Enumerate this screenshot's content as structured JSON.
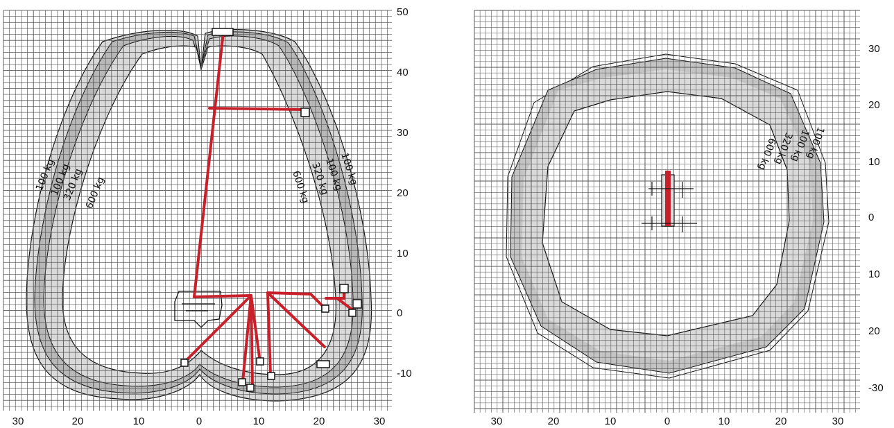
{
  "left_diagram": {
    "axis_x_ticks": [
      "30",
      "20",
      "10",
      "0",
      "10",
      "20",
      "30"
    ],
    "axis_y_ticks": [
      "50",
      "40",
      "30",
      "20",
      "10",
      "0",
      "-10"
    ],
    "envelope_labels_left": [
      "100 kg",
      "100 kg",
      "320 kg",
      "600 kg"
    ],
    "envelope_labels_right": [
      "600 kg",
      "320 kg",
      "100 kg",
      "100 kg"
    ]
  },
  "right_diagram": {
    "axis_x_ticks": [
      "30",
      "20",
      "10",
      "0",
      "10",
      "20",
      "30"
    ],
    "axis_y_ticks": [
      "30",
      "20",
      "10",
      "0",
      "10",
      "20",
      "-30"
    ],
    "envelope_labels": [
      "600 kg",
      "320 kg",
      "100 kg",
      "100 kg"
    ]
  },
  "colors": {
    "grid": "#555555",
    "envelope_band": "#d9d9d9",
    "envelope_dark": "#b8b8b8",
    "boom": "#c8202a",
    "line": "#111111"
  }
}
